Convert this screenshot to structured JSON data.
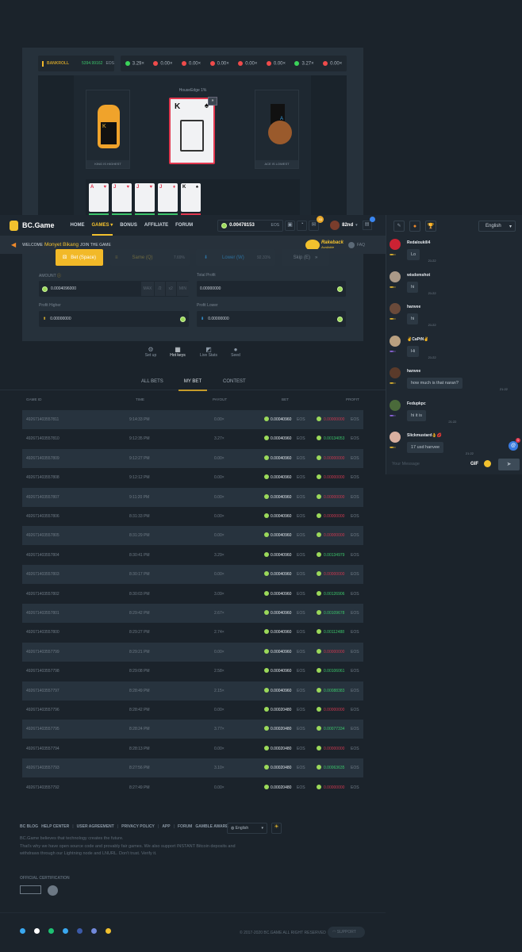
{
  "game": {
    "bankroll_label": "BANKROLL",
    "bankroll_value": "5394.99162",
    "bankroll_unit": "EOS",
    "history": [
      {
        "v": "3.29×",
        "c": "#3bd45a"
      },
      {
        "v": "0.00×",
        "c": "#ef4b4b"
      },
      {
        "v": "0.00×",
        "c": "#ef4b4b"
      },
      {
        "v": "0.00×",
        "c": "#ef4b4b"
      },
      {
        "v": "0.00×",
        "c": "#ef4b4b"
      },
      {
        "v": "0.00×",
        "c": "#ef4b4b"
      },
      {
        "v": "3.27×",
        "c": "#3bd45a"
      },
      {
        "v": "0.00×",
        "c": "#ef4b4b"
      }
    ],
    "house_edge": "HouseEdge 1%",
    "left_label": "KING IS HIGHEST",
    "right_label": "ACE IS LOWEST",
    "current_card": {
      "rank": "K",
      "suit": "♠"
    },
    "card_history": [
      {
        "rank": "A",
        "suit": "♥",
        "result": "win"
      },
      {
        "rank": "J",
        "suit": "♥",
        "result": "win"
      },
      {
        "rank": "J",
        "suit": "♥",
        "result": "win"
      },
      {
        "rank": "J",
        "suit": "♦",
        "result": "win"
      },
      {
        "rank": "K",
        "suit": "♠",
        "result": "loss"
      }
    ]
  },
  "nav": {
    "logo": "BC.Game",
    "links": [
      "HOME",
      "GAMES",
      "BONUS",
      "AFFILIATE",
      "FORUM"
    ],
    "active": "GAMES",
    "balance": "0.00478153",
    "currency": "EOS",
    "mail_badge": "33",
    "rank": "82nd"
  },
  "welcome": {
    "prefix": "WELCOME",
    "name": "Monyet Bikang",
    "suffix": "JOIN THE GAME",
    "rakeback": "Rakeback",
    "rakeback_sub": "Available",
    "faq": "FAQ"
  },
  "controls": {
    "bet": "Bet (Space)",
    "same": "Same (Q)",
    "same_pct": "7.69%",
    "lower": "Lower (W)",
    "lower_pct": "92.31%",
    "skip": "Skip (E)",
    "amount_label": "AMOUNT",
    "amount_value": "0.0004096000",
    "max": "MAX",
    "half": "/2",
    "double": "x2",
    "min": "MIN",
    "total_profit_label": "Total Profit",
    "total_profit": "0.00000000",
    "profit_higher_label": "Profit Higher",
    "profit_higher": "0.00000000",
    "profit_lower_label": "Profit Lower",
    "profit_lower": "0.00000000",
    "tools": [
      "Set up",
      "Hot keys",
      "Live Stats",
      "Seed"
    ]
  },
  "bets": {
    "tabs": [
      "ALL BETS",
      "MY BET",
      "CONTEST"
    ],
    "active_tab": "MY BET",
    "headers": [
      "GAME ID",
      "TIME",
      "PAYOUT",
      "BET",
      "PROFIT"
    ],
    "rows": [
      [
        "492671403557811",
        "9:14:33 PM",
        "0.00×",
        "0.00040960",
        "0.00000000"
      ],
      [
        "492671403557810",
        "9:12:35 PM",
        "3.27×",
        "0.00040960",
        "0.00134053"
      ],
      [
        "492671403557809",
        "9:12:27 PM",
        "0.00×",
        "0.00040960",
        "0.00000000"
      ],
      [
        "492671403557808",
        "9:12:12 PM",
        "0.00×",
        "0.00040960",
        "0.00000000"
      ],
      [
        "492671403557807",
        "9:11:20 PM",
        "0.00×",
        "0.00040960",
        "0.00000000"
      ],
      [
        "492671403557806",
        "8:31:33 PM",
        "0.00×",
        "0.00040960",
        "0.00000000"
      ],
      [
        "492671403557805",
        "8:31:29 PM",
        "0.00×",
        "0.00040960",
        "0.00000000"
      ],
      [
        "492671403557804",
        "8:30:41 PM",
        "3.29×",
        "0.00040960",
        "0.00134979"
      ],
      [
        "492671403557803",
        "8:30:17 PM",
        "0.00×",
        "0.00040960",
        "0.00000000"
      ],
      [
        "492671403557802",
        "8:30:03 PM",
        "3.09×",
        "0.00040960",
        "0.00126906"
      ],
      [
        "492671403557801",
        "8:29:42 PM",
        "2.67×",
        "0.00040960",
        "0.00109678"
      ],
      [
        "492671403557800",
        "8:29:27 PM",
        "2.74×",
        "0.00040960",
        "0.00112488"
      ],
      [
        "492671403557799",
        "8:29:21 PM",
        "0.00×",
        "0.00040960",
        "0.00000000"
      ],
      [
        "492671403557798",
        "8:29:08 PM",
        "2.58×",
        "0.00040960",
        "0.00106061"
      ],
      [
        "492671403557797",
        "8:28:49 PM",
        "2.15×",
        "0.00040960",
        "0.00088383"
      ],
      [
        "492671403557796",
        "8:28:42 PM",
        "0.00×",
        "0.00020480",
        "0.00000000"
      ],
      [
        "492671403557795",
        "8:28:24 PM",
        "3.77×",
        "0.00020480",
        "0.00077334"
      ],
      [
        "492671403557794",
        "8:28:13 PM",
        "0.00×",
        "0.00020480",
        "0.00000000"
      ],
      [
        "492671403557793",
        "8:27:56 PM",
        "3.10×",
        "0.00020480",
        "0.00063635"
      ],
      [
        "492671403557792",
        "8:27:49 PM",
        "0.00×",
        "0.00020480",
        "0.00000000"
      ]
    ],
    "unit": "EOS",
    "win_color": "#3bc46a",
    "loss_color": "#c9384f"
  },
  "chat": {
    "language": "English",
    "messages": [
      {
        "user": "Redaloukili4",
        "text": "Lo",
        "time": "21:22",
        "level": "gold"
      },
      {
        "user": "wisdomshot",
        "text": "hi",
        "time": "21:22",
        "level": "gold"
      },
      {
        "user": "hanvee",
        "text": "hi",
        "time": "21:22",
        "level": "gold"
      },
      {
        "user": "✌CaPtN✌",
        "text": "Hi",
        "time": "21:22",
        "level": "purple"
      },
      {
        "user": "hanvee",
        "text": "how much is that naran?",
        "time": "21:22",
        "level": "gold"
      },
      {
        "user": "Fedupkpc",
        "text": "hi it is",
        "time": "21:22",
        "level": "purple"
      },
      {
        "user": "Slickmustard👌💋",
        "text": "17 usd hanvee",
        "time": "21:22",
        "level": "gold"
      }
    ],
    "mention_badge": "1",
    "placeholder": "Your Message",
    "gif": "GIF"
  },
  "footer": {
    "links": [
      "BC BLOG",
      "HELP CENTER",
      "USER AGREEMENT",
      "PRIVACY POLICY",
      "APP",
      "FORUM",
      "GAMBLE AWARE"
    ],
    "language": "English",
    "about": [
      "BC.Game believes that technology creates the future.",
      "That's why we have open source code and provably fair games. We also support INSTANT Bitcoin deposits and",
      "withdraws through our Lightning node and LNURL. Don't trust. Verify it."
    ],
    "cert_label": "OFFICIAL CERTIFICATION",
    "socials": [
      "telegram-icon",
      "github-icon",
      "medium-icon",
      "twitter-icon",
      "facebook-icon",
      "discord-icon",
      "bitcoin-icon"
    ],
    "copyright": "© 2017-2020 BC.GAME ALL RIGHT RESERVED",
    "support": "SUPPORT"
  }
}
